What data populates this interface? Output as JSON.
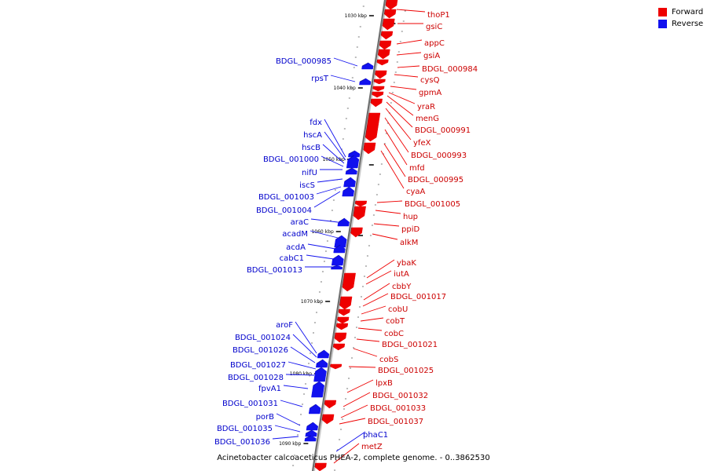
{
  "legend": {
    "forward": {
      "label": "Forward",
      "color": "#ee0000"
    },
    "reverse": {
      "label": "Reverse",
      "color": "#1111ee"
    }
  },
  "caption": "Acinetobacter calcoaceticus PHEA-2, complete genome. - 0..3862530",
  "scale_labels": [
    "1030 kbp",
    "1040 kbp",
    "1050 kbp",
    "1060 kbp",
    "1070 kbp",
    "1080 kbp",
    "1090 kbp"
  ],
  "forward_genes": [
    "thoP1",
    "gsiC",
    "appC",
    "gsiA",
    "BDGL_000984",
    "cysQ",
    "gpmA",
    "yraR",
    "menG",
    "BDGL_000991",
    "yfeX",
    "BDGL_000993",
    "mfd",
    "BDGL_000995",
    "cyaA",
    "BDGL_001005",
    "hup",
    "ppiD",
    "alkM",
    "ybaK",
    "iutA",
    "cbbY",
    "BDGL_001017",
    "cobU",
    "cobT",
    "cobC",
    "BDGL_001021",
    "cobS",
    "BDGL_001025",
    "lpxB",
    "BDGL_001032",
    "BDGL_001033",
    "BDGL_001037",
    "metZ"
  ],
  "reverse_genes": [
    "BDGL_000985",
    "rpsT",
    "fdx",
    "hscA",
    "hscB",
    "BDGL_001000",
    "nifU",
    "iscS",
    "BDGL_001003",
    "BDGL_001004",
    "araC",
    "acadM",
    "acdA",
    "cabC1",
    "BDGL_001013",
    "aroF",
    "BDGL_001024",
    "BDGL_001026",
    "BDGL_001027",
    "BDGL_001028",
    "fpvA1",
    "BDGL_001031",
    "porB",
    "BDGL_001035",
    "BDGL_001036",
    "phaC1"
  ]
}
